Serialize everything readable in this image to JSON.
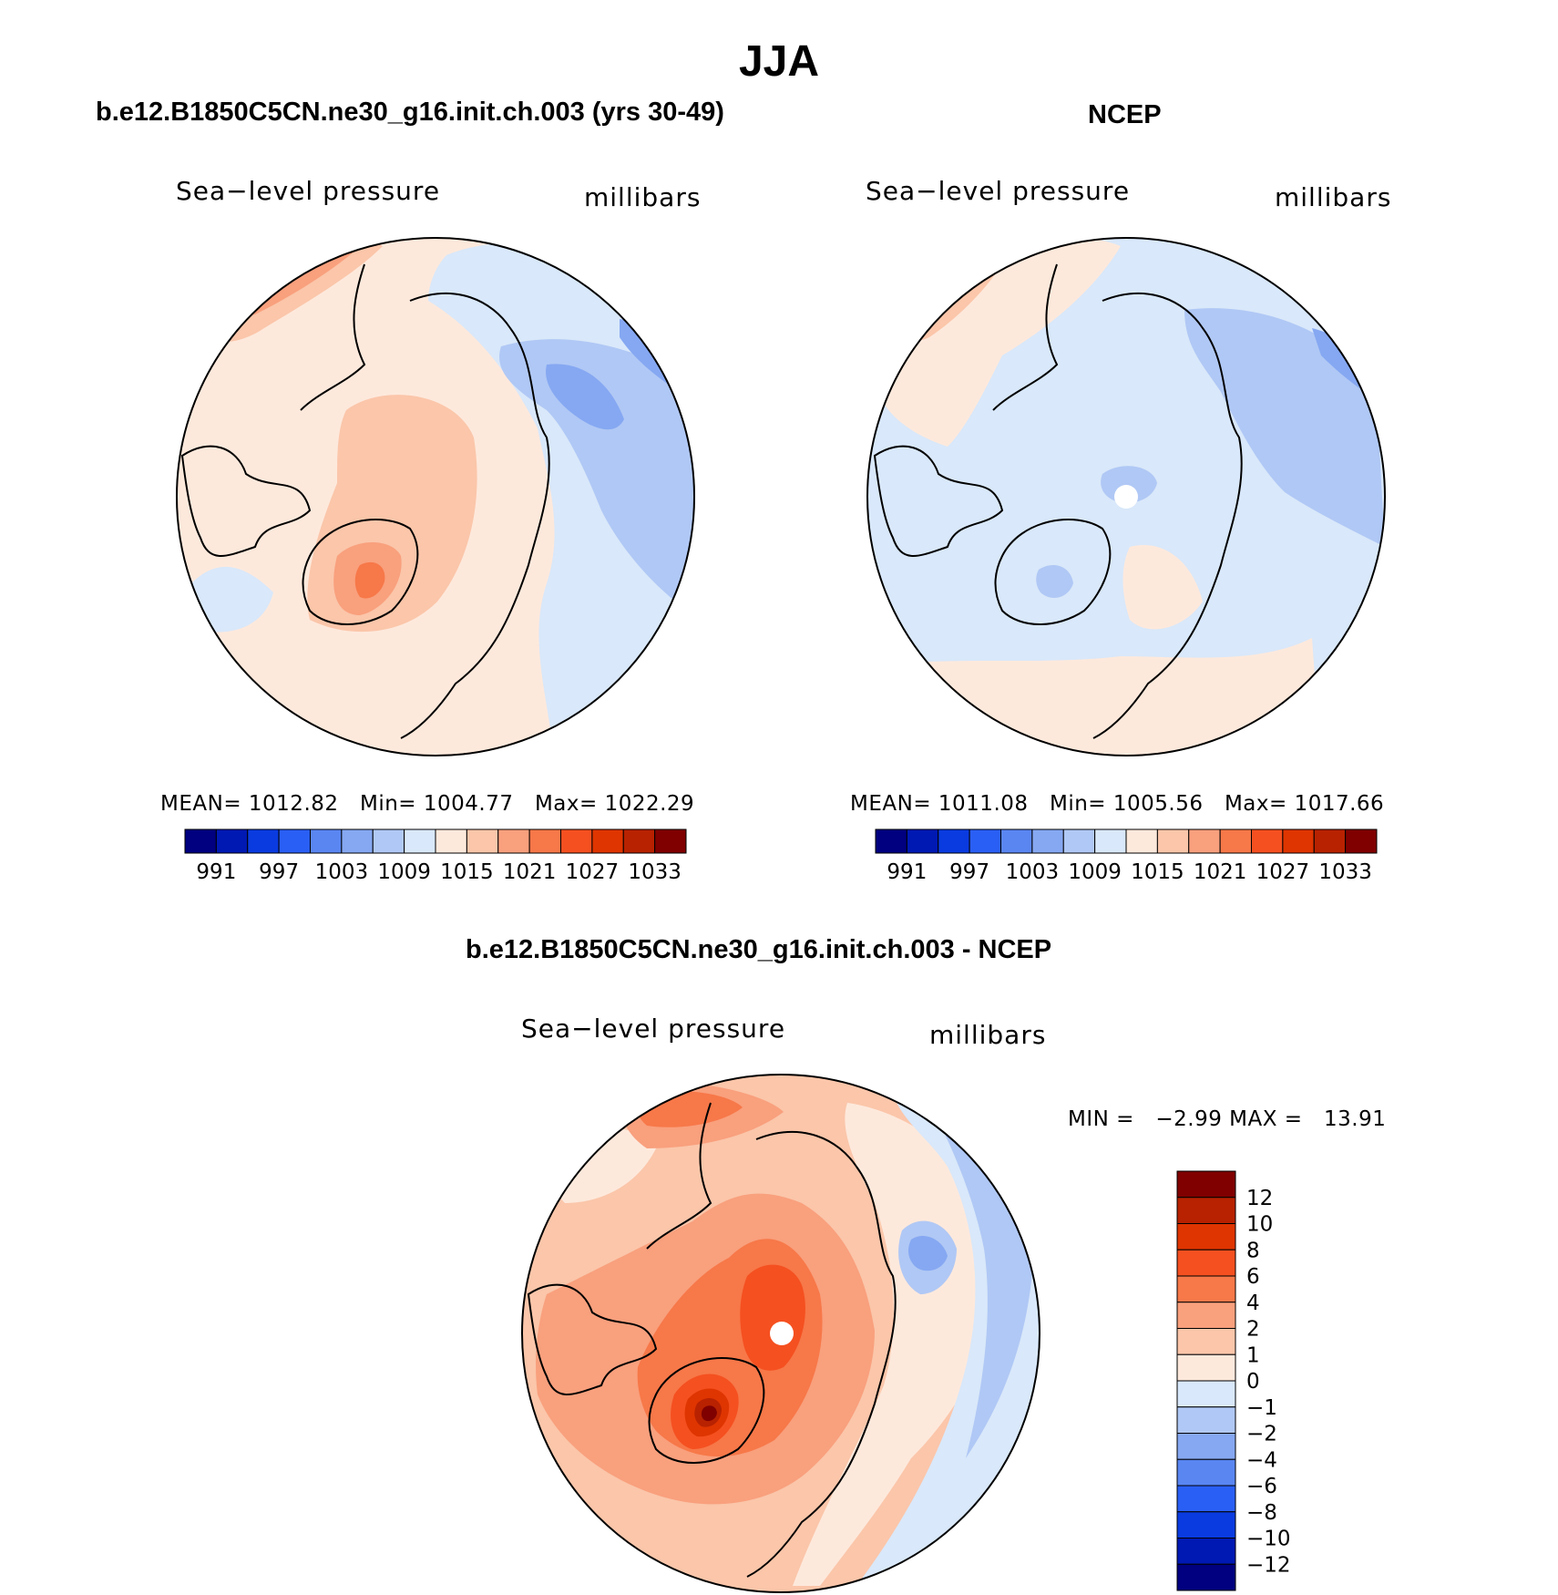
{
  "figure": {
    "title": "JJA",
    "season": "JJA"
  },
  "colors": {
    "abs_levels": [
      "#000080",
      "#0019b3",
      "#0a3be0",
      "#2a5ff5",
      "#5a86f2",
      "#86a8f2",
      "#b0c8f5",
      "#d9e8fa",
      "#fde9dc",
      "#fbc6aa",
      "#f9a07d",
      "#f77849",
      "#f55020",
      "#df3500",
      "#b82200",
      "#800000"
    ],
    "diff_levels": [
      "#000080",
      "#0019b3",
      "#0a3be0",
      "#2a5ff5",
      "#5a86f2",
      "#86a8f2",
      "#b0c8f5",
      "#d9e8fa",
      "#fde9dc",
      "#fbc6aa",
      "#f9a07d",
      "#f77849",
      "#f55020",
      "#df3500",
      "#b82200",
      "#800000"
    ]
  },
  "chart_data": [
    {
      "type": "heatmap",
      "panel": "model",
      "title": "b.e12.B1850C5CN.ne30_g16.init.ch.003 (yrs 30-49)",
      "variable": "Sea−level pressure",
      "units": "millibars",
      "projection": "north polar stereographic",
      "stats": {
        "mean_label": "MEAN=",
        "mean": "1012.82",
        "min_label": "Min=",
        "min": "1004.77",
        "max_label": "Max=",
        "max": "1022.29"
      },
      "colorbar": {
        "orientation": "horizontal",
        "levels": [
          991,
          994,
          997,
          1000,
          1003,
          1006,
          1009,
          1012,
          1015,
          1018,
          1021,
          1024,
          1027,
          1030,
          1033
        ],
        "tick_labels": [
          "991",
          "997",
          "1003",
          "1009",
          "1015",
          "1021",
          "1027",
          "1033"
        ]
      }
    },
    {
      "type": "heatmap",
      "panel": "obs",
      "title": "NCEP",
      "variable": "Sea−level pressure",
      "units": "millibars",
      "projection": "north polar stereographic",
      "stats": {
        "mean_label": "MEAN=",
        "mean": "1011.08",
        "min_label": "Min=",
        "min": "1005.56",
        "max_label": "Max=",
        "max": "1017.66"
      },
      "colorbar": {
        "orientation": "horizontal",
        "levels": [
          991,
          994,
          997,
          1000,
          1003,
          1006,
          1009,
          1012,
          1015,
          1018,
          1021,
          1024,
          1027,
          1030,
          1033
        ],
        "tick_labels": [
          "991",
          "997",
          "1003",
          "1009",
          "1015",
          "1021",
          "1027",
          "1033"
        ]
      }
    },
    {
      "type": "heatmap",
      "panel": "difference",
      "title": "b.e12.B1850C5CN.ne30_g16.init.ch.003 - NCEP",
      "variable": "Sea−level pressure",
      "units": "millibars",
      "projection": "north polar stereographic",
      "stats": {
        "min_label": "MIN =",
        "min": "−2.99",
        "max_label": "MAX =",
        "max": "13.91"
      },
      "colorbar": {
        "orientation": "vertical",
        "tick_labels": [
          "12",
          "10",
          "8",
          "6",
          "4",
          "2",
          "1",
          "0",
          "−1",
          "−2",
          "−4",
          "−6",
          "−8",
          "−10",
          "−12"
        ]
      }
    }
  ]
}
